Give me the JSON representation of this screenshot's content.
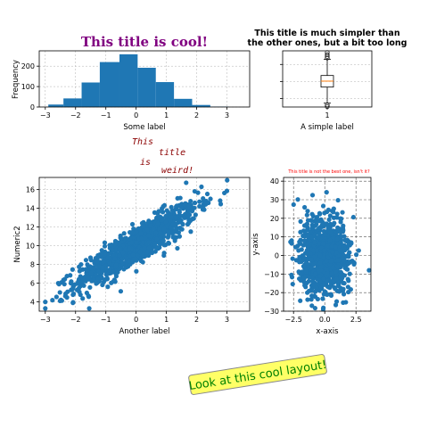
{
  "chart_data": [
    {
      "id": "histogram",
      "type": "bar",
      "title": "This title is cool!",
      "title_color": "#800080",
      "xlabel": "Some label",
      "ylabel": "Frequency",
      "bin_edges": [
        -2.9,
        -2.4,
        -1.8,
        -1.2,
        -0.55,
        0.05,
        0.65,
        1.25,
        1.85,
        2.45,
        3.05
      ],
      "values": [
        12,
        42,
        120,
        220,
        258,
        192,
        122,
        40,
        10,
        2
      ],
      "xlim": [
        -3.2,
        3.75
      ],
      "ylim": [
        0,
        275
      ],
      "xticks": [
        -3,
        -2,
        -1,
        0,
        1,
        2,
        3
      ],
      "yticks": [
        0,
        100,
        200
      ],
      "bar_color": "#1f77b4",
      "grid": true
    },
    {
      "id": "boxplot",
      "type": "box",
      "title": "This title is much simpler than the other ones, but a bit too long",
      "xlabel": "A simple label",
      "xticks": [
        "1"
      ],
      "median": 0.04,
      "q1": -0.66,
      "q3": 0.7,
      "whisker_low": -2.55,
      "whisker_high": 2.6,
      "outliers": [
        2.75,
        2.95,
        3.15,
        3.4,
        -2.75,
        -2.95
      ],
      "ylim": [
        -3.0,
        3.6
      ],
      "median_color": "#ff7f0e",
      "grid": true
    },
    {
      "id": "weird-title",
      "type": "annotation",
      "words": [
        "This",
        "title",
        "is",
        "weird!"
      ],
      "color": "#8b0000"
    },
    {
      "id": "scatter-left",
      "type": "scatter",
      "xlabel": "Another label",
      "ylabel": "Numeric2",
      "xlim": [
        -3.2,
        3.75
      ],
      "ylim": [
        3.0,
        17.3
      ],
      "xticks": [
        -3,
        -2,
        -1,
        0,
        1,
        2,
        3
      ],
      "yticks": [
        4,
        6,
        8,
        10,
        12,
        14,
        16
      ],
      "n_points": 1000,
      "center": [
        0,
        10
      ],
      "slope": 2,
      "x_sd": 1,
      "noise_sd": 1,
      "color": "#1f77b4",
      "grid": true
    },
    {
      "id": "scatter-right",
      "type": "scatter",
      "title": "This title is not the best one, isn't it?",
      "title_color": "#ff0000",
      "xlabel": "x-axis",
      "ylabel": "y-axis",
      "xlim": [
        -3.3,
        3.7
      ],
      "ylim": [
        -30,
        42
      ],
      "xticks": [
        -2.5,
        0.0,
        2.5
      ],
      "xtick_labels": [
        "−2.5",
        "0.0",
        "2.5"
      ],
      "yticks": [
        -30,
        -20,
        -10,
        0,
        10,
        20,
        30,
        40
      ],
      "n_points": 1000,
      "center": [
        0,
        0
      ],
      "x_sd": 1,
      "y_sd": 10,
      "color": "#1f77b4",
      "grid": true,
      "grid_style": "dashed-dark"
    }
  ],
  "annotation": {
    "text": "Look at this cool layout!",
    "text_color": "#008000",
    "background_color": "#ffff66"
  }
}
